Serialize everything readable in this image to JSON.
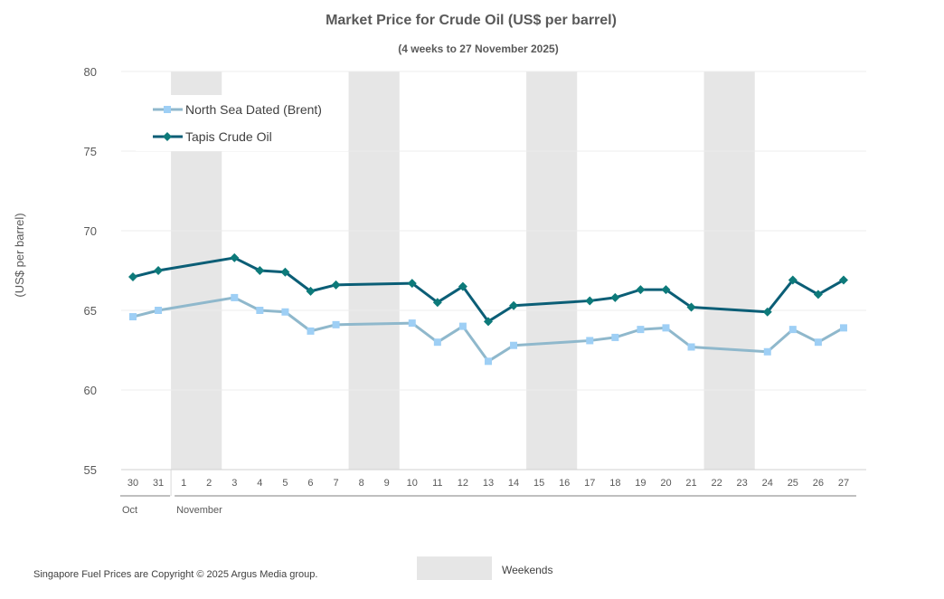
{
  "chart_data": {
    "type": "line",
    "title": "Market Price for Crude Oil (US$ per barrel)",
    "subtitle": "(4 weeks to 27 November 2025)",
    "ylabel": "(US$ per barrel)",
    "ylim": [
      55,
      80
    ],
    "yticks": [
      55,
      60,
      65,
      70,
      75,
      80
    ],
    "categories": [
      "30",
      "31",
      "1",
      "2",
      "3",
      "4",
      "5",
      "6",
      "7",
      "8",
      "9",
      "10",
      "11",
      "12",
      "13",
      "14",
      "15",
      "16",
      "17",
      "18",
      "19",
      "20",
      "21",
      "22",
      "23",
      "24",
      "25",
      "26",
      "27"
    ],
    "month_groups": [
      {
        "label": "Oct",
        "start": "30",
        "end": "31"
      },
      {
        "label": "November",
        "start": "1",
        "end": "27"
      }
    ],
    "weekend_days": [
      [
        "1",
        "2"
      ],
      [
        "8",
        "9"
      ],
      [
        "15",
        "16"
      ],
      [
        "22",
        "23"
      ]
    ],
    "series": [
      {
        "name": "North Sea Dated (Brent)",
        "color": "#8fb8cc",
        "marker_color": "#9ecff5",
        "marker": "square",
        "points": [
          {
            "day": "30",
            "value": 64.6
          },
          {
            "day": "31",
            "value": 65.0
          },
          {
            "day": "3",
            "value": 65.8
          },
          {
            "day": "4",
            "value": 65.0
          },
          {
            "day": "5",
            "value": 64.9
          },
          {
            "day": "6",
            "value": 63.7
          },
          {
            "day": "7",
            "value": 64.1
          },
          {
            "day": "10",
            "value": 64.2
          },
          {
            "day": "11",
            "value": 63.0
          },
          {
            "day": "12",
            "value": 64.0
          },
          {
            "day": "13",
            "value": 61.8
          },
          {
            "day": "14",
            "value": 62.8
          },
          {
            "day": "17",
            "value": 63.1
          },
          {
            "day": "18",
            "value": 63.3
          },
          {
            "day": "19",
            "value": 63.8
          },
          {
            "day": "20",
            "value": 63.9
          },
          {
            "day": "21",
            "value": 62.7
          },
          {
            "day": "24",
            "value": 62.4
          },
          {
            "day": "25",
            "value": 63.8
          },
          {
            "day": "26",
            "value": 63.0
          },
          {
            "day": "27",
            "value": 63.9
          }
        ]
      },
      {
        "name": "Tapis Crude Oil",
        "color": "#0b5e76",
        "marker_color": "#0d7a7a",
        "marker": "diamond",
        "points": [
          {
            "day": "30",
            "value": 67.1
          },
          {
            "day": "31",
            "value": 67.5
          },
          {
            "day": "3",
            "value": 68.3
          },
          {
            "day": "4",
            "value": 67.5
          },
          {
            "day": "5",
            "value": 67.4
          },
          {
            "day": "6",
            "value": 66.2
          },
          {
            "day": "7",
            "value": 66.6
          },
          {
            "day": "10",
            "value": 66.7
          },
          {
            "day": "11",
            "value": 65.5
          },
          {
            "day": "12",
            "value": 66.5
          },
          {
            "day": "13",
            "value": 64.3
          },
          {
            "day": "14",
            "value": 65.3
          },
          {
            "day": "17",
            "value": 65.6
          },
          {
            "day": "18",
            "value": 65.8
          },
          {
            "day": "19",
            "value": 66.3
          },
          {
            "day": "20",
            "value": 66.3
          },
          {
            "day": "21",
            "value": 65.2
          },
          {
            "day": "24",
            "value": 64.9
          },
          {
            "day": "25",
            "value": 66.9
          },
          {
            "day": "26",
            "value": 66.0
          },
          {
            "day": "27",
            "value": 66.9
          }
        ]
      }
    ],
    "legend_position": "top-left",
    "weekends_legend": "Weekends",
    "weekend_color": "#e6e6e6",
    "grid": true
  },
  "footer": {
    "copyright": "Singapore Fuel Prices are Copyright © 2025 Argus Media group."
  }
}
